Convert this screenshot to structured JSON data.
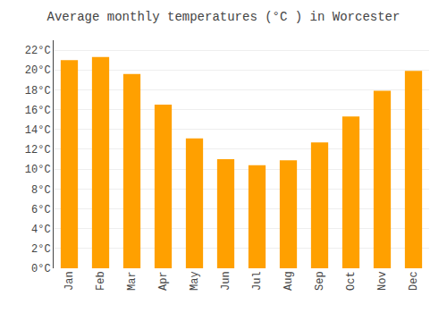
{
  "chart_data": {
    "type": "bar",
    "title": "Average monthly temperatures (°C ) in Worcester",
    "categories": [
      "Jan",
      "Feb",
      "Mar",
      "Apr",
      "May",
      "Jun",
      "Jul",
      "Aug",
      "Sep",
      "Oct",
      "Nov",
      "Dec"
    ],
    "values": [
      21.0,
      21.3,
      19.6,
      16.5,
      13.1,
      11.0,
      10.4,
      10.9,
      12.7,
      15.3,
      17.9,
      19.9
    ],
    "color": "#FFA000",
    "ylim": [
      0,
      23
    ],
    "yticks": [
      {
        "value": 0,
        "label": "0°C"
      },
      {
        "value": 2,
        "label": "2°C"
      },
      {
        "value": 4,
        "label": "4°C"
      },
      {
        "value": 6,
        "label": "6°C"
      },
      {
        "value": 8,
        "label": "8°C"
      },
      {
        "value": 10,
        "label": "10°C"
      },
      {
        "value": 12,
        "label": "12°C"
      },
      {
        "value": 14,
        "label": "14°C"
      },
      {
        "value": 16,
        "label": "16°C"
      },
      {
        "value": 18,
        "label": "18°C"
      },
      {
        "value": 20,
        "label": "20°C"
      },
      {
        "value": 22,
        "label": "22°C"
      }
    ],
    "grid": true
  }
}
